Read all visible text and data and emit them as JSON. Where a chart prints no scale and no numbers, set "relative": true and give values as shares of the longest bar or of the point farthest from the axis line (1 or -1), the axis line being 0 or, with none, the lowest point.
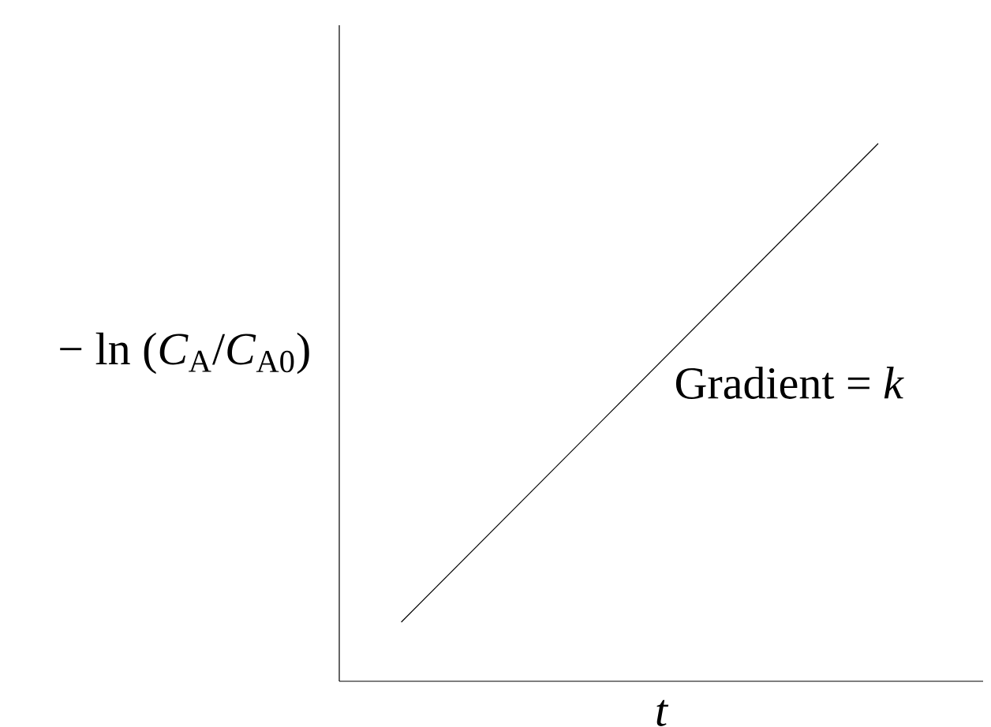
{
  "chart_data": {
    "type": "line",
    "relative": true,
    "categories": [
      null,
      null
    ],
    "values": [
      0.11,
      1
    ],
    "color": "#000000",
    "xlabel": "t",
    "ylabel": "− ln (*C*$_{A}$/*C*$_{A0}$)",
    "annotations": [
      "Gradient = *k*"
    ],
    "marker": "none",
    "line_style": "solid"
  }
}
